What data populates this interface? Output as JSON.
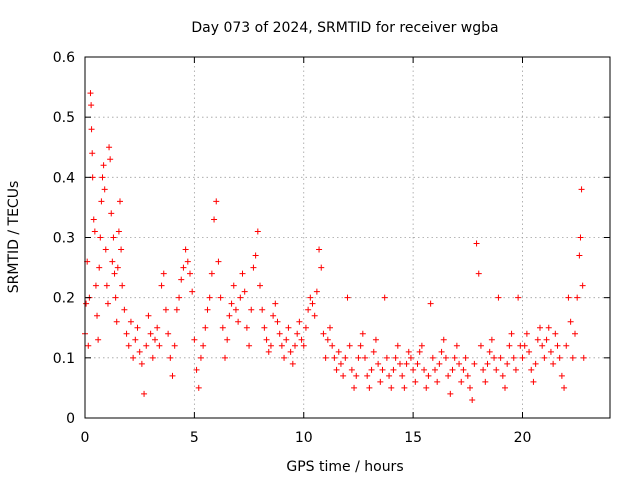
{
  "chart_data": {
    "type": "scatter",
    "title": "Day 073 of 2024, SRMTID for receiver wgba",
    "xlabel": "GPS time / hours",
    "ylabel": "SRMTID / TECUs",
    "xlim": [
      0,
      24
    ],
    "ylim": [
      0,
      0.6
    ],
    "xticks": [
      0,
      5,
      10,
      15,
      20
    ],
    "xtick_labels": [
      "0",
      "5",
      "10",
      "15",
      "20"
    ],
    "yticks": [
      0,
      0.1,
      0.2,
      0.3,
      0.4,
      0.5,
      0.6
    ],
    "ytick_labels": [
      "0",
      "0.1",
      "0.2",
      "0.3",
      "0.4",
      "0.5",
      "0.6"
    ],
    "grid": true,
    "marker": "+",
    "color": "#ff0000",
    "series": [
      {
        "name": "SRMTID",
        "points": [
          [
            0.0,
            0.14
          ],
          [
            0.05,
            0.19
          ],
          [
            0.1,
            0.26
          ],
          [
            0.15,
            0.12
          ],
          [
            0.2,
            0.2
          ],
          [
            0.25,
            0.54
          ],
          [
            0.28,
            0.52
          ],
          [
            0.3,
            0.48
          ],
          [
            0.33,
            0.44
          ],
          [
            0.35,
            0.4
          ],
          [
            0.4,
            0.33
          ],
          [
            0.45,
            0.31
          ],
          [
            0.5,
            0.22
          ],
          [
            0.55,
            0.17
          ],
          [
            0.6,
            0.13
          ],
          [
            0.65,
            0.25
          ],
          [
            0.7,
            0.3
          ],
          [
            0.75,
            0.36
          ],
          [
            0.8,
            0.4
          ],
          [
            0.85,
            0.42
          ],
          [
            0.9,
            0.38
          ],
          [
            0.95,
            0.28
          ],
          [
            1.0,
            0.22
          ],
          [
            1.05,
            0.19
          ],
          [
            1.1,
            0.45
          ],
          [
            1.15,
            0.43
          ],
          [
            1.2,
            0.34
          ],
          [
            1.25,
            0.26
          ],
          [
            1.3,
            0.3
          ],
          [
            1.35,
            0.24
          ],
          [
            1.4,
            0.2
          ],
          [
            1.45,
            0.16
          ],
          [
            1.5,
            0.25
          ],
          [
            1.55,
            0.31
          ],
          [
            1.6,
            0.36
          ],
          [
            1.65,
            0.28
          ],
          [
            1.7,
            0.22
          ],
          [
            1.8,
            0.18
          ],
          [
            1.9,
            0.14
          ],
          [
            2.0,
            0.12
          ],
          [
            2.1,
            0.16
          ],
          [
            2.2,
            0.1
          ],
          [
            2.3,
            0.13
          ],
          [
            2.4,
            0.15
          ],
          [
            2.5,
            0.11
          ],
          [
            2.6,
            0.09
          ],
          [
            2.7,
            0.04
          ],
          [
            2.8,
            0.12
          ],
          [
            2.9,
            0.17
          ],
          [
            3.0,
            0.14
          ],
          [
            3.1,
            0.1
          ],
          [
            3.2,
            0.13
          ],
          [
            3.3,
            0.15
          ],
          [
            3.4,
            0.12
          ],
          [
            3.5,
            0.22
          ],
          [
            3.6,
            0.24
          ],
          [
            3.7,
            0.18
          ],
          [
            3.8,
            0.14
          ],
          [
            3.9,
            0.1
          ],
          [
            4.0,
            0.07
          ],
          [
            4.1,
            0.12
          ],
          [
            4.2,
            0.18
          ],
          [
            4.3,
            0.2
          ],
          [
            4.4,
            0.23
          ],
          [
            4.5,
            0.25
          ],
          [
            4.6,
            0.28
          ],
          [
            4.7,
            0.26
          ],
          [
            4.8,
            0.24
          ],
          [
            4.9,
            0.21
          ],
          [
            5.0,
            0.13
          ],
          [
            5.1,
            0.08
          ],
          [
            5.2,
            0.05
          ],
          [
            5.3,
            0.1
          ],
          [
            5.4,
            0.12
          ],
          [
            5.5,
            0.15
          ],
          [
            5.6,
            0.18
          ],
          [
            5.7,
            0.2
          ],
          [
            5.8,
            0.24
          ],
          [
            5.9,
            0.33
          ],
          [
            6.0,
            0.36
          ],
          [
            6.1,
            0.26
          ],
          [
            6.2,
            0.2
          ],
          [
            6.3,
            0.15
          ],
          [
            6.4,
            0.1
          ],
          [
            6.5,
            0.13
          ],
          [
            6.6,
            0.17
          ],
          [
            6.7,
            0.19
          ],
          [
            6.8,
            0.22
          ],
          [
            6.9,
            0.18
          ],
          [
            7.0,
            0.16
          ],
          [
            7.1,
            0.2
          ],
          [
            7.2,
            0.24
          ],
          [
            7.3,
            0.21
          ],
          [
            7.4,
            0.15
          ],
          [
            7.5,
            0.12
          ],
          [
            7.6,
            0.18
          ],
          [
            7.7,
            0.25
          ],
          [
            7.8,
            0.27
          ],
          [
            7.9,
            0.31
          ],
          [
            8.0,
            0.22
          ],
          [
            8.1,
            0.18
          ],
          [
            8.2,
            0.15
          ],
          [
            8.3,
            0.13
          ],
          [
            8.4,
            0.11
          ],
          [
            8.5,
            0.12
          ],
          [
            8.6,
            0.17
          ],
          [
            8.7,
            0.19
          ],
          [
            8.8,
            0.16
          ],
          [
            8.9,
            0.14
          ],
          [
            9.0,
            0.12
          ],
          [
            9.1,
            0.1
          ],
          [
            9.2,
            0.13
          ],
          [
            9.3,
            0.15
          ],
          [
            9.4,
            0.11
          ],
          [
            9.5,
            0.09
          ],
          [
            9.6,
            0.12
          ],
          [
            9.7,
            0.14
          ],
          [
            9.8,
            0.16
          ],
          [
            9.9,
            0.13
          ],
          [
            10.0,
            0.12
          ],
          [
            10.1,
            0.15
          ],
          [
            10.2,
            0.18
          ],
          [
            10.3,
            0.2
          ],
          [
            10.4,
            0.19
          ],
          [
            10.5,
            0.17
          ],
          [
            10.6,
            0.21
          ],
          [
            10.7,
            0.28
          ],
          [
            10.8,
            0.25
          ],
          [
            10.9,
            0.14
          ],
          [
            11.0,
            0.1
          ],
          [
            11.1,
            0.13
          ],
          [
            11.2,
            0.15
          ],
          [
            11.3,
            0.12
          ],
          [
            11.4,
            0.1
          ],
          [
            11.5,
            0.08
          ],
          [
            11.6,
            0.11
          ],
          [
            11.7,
            0.09
          ],
          [
            11.8,
            0.07
          ],
          [
            11.9,
            0.1
          ],
          [
            12.0,
            0.2
          ],
          [
            12.1,
            0.12
          ],
          [
            12.2,
            0.08
          ],
          [
            12.3,
            0.05
          ],
          [
            12.4,
            0.07
          ],
          [
            12.5,
            0.1
          ],
          [
            12.6,
            0.12
          ],
          [
            12.7,
            0.14
          ],
          [
            12.8,
            0.1
          ],
          [
            12.9,
            0.07
          ],
          [
            13.0,
            0.05
          ],
          [
            13.1,
            0.08
          ],
          [
            13.2,
            0.11
          ],
          [
            13.3,
            0.13
          ],
          [
            13.4,
            0.09
          ],
          [
            13.5,
            0.06
          ],
          [
            13.6,
            0.08
          ],
          [
            13.7,
            0.2
          ],
          [
            13.8,
            0.1
          ],
          [
            13.9,
            0.07
          ],
          [
            14.0,
            0.05
          ],
          [
            14.1,
            0.08
          ],
          [
            14.2,
            0.1
          ],
          [
            14.3,
            0.12
          ],
          [
            14.4,
            0.09
          ],
          [
            14.5,
            0.07
          ],
          [
            14.6,
            0.05
          ],
          [
            14.7,
            0.09
          ],
          [
            14.8,
            0.11
          ],
          [
            14.9,
            0.1
          ],
          [
            15.0,
            0.08
          ],
          [
            15.1,
            0.06
          ],
          [
            15.2,
            0.09
          ],
          [
            15.3,
            0.11
          ],
          [
            15.4,
            0.12
          ],
          [
            15.5,
            0.08
          ],
          [
            15.6,
            0.05
          ],
          [
            15.7,
            0.07
          ],
          [
            15.8,
            0.19
          ],
          [
            15.9,
            0.1
          ],
          [
            16.0,
            0.08
          ],
          [
            16.1,
            0.06
          ],
          [
            16.2,
            0.09
          ],
          [
            16.3,
            0.11
          ],
          [
            16.4,
            0.13
          ],
          [
            16.5,
            0.1
          ],
          [
            16.6,
            0.07
          ],
          [
            16.7,
            0.04
          ],
          [
            16.8,
            0.08
          ],
          [
            16.9,
            0.1
          ],
          [
            17.0,
            0.12
          ],
          [
            17.1,
            0.09
          ],
          [
            17.2,
            0.06
          ],
          [
            17.3,
            0.08
          ],
          [
            17.4,
            0.1
          ],
          [
            17.5,
            0.07
          ],
          [
            17.6,
            0.05
          ],
          [
            17.7,
            0.03
          ],
          [
            17.8,
            0.09
          ],
          [
            17.9,
            0.29
          ],
          [
            18.0,
            0.24
          ],
          [
            18.1,
            0.12
          ],
          [
            18.2,
            0.08
          ],
          [
            18.3,
            0.06
          ],
          [
            18.4,
            0.09
          ],
          [
            18.5,
            0.11
          ],
          [
            18.6,
            0.13
          ],
          [
            18.7,
            0.1
          ],
          [
            18.8,
            0.08
          ],
          [
            18.9,
            0.2
          ],
          [
            19.0,
            0.1
          ],
          [
            19.1,
            0.07
          ],
          [
            19.2,
            0.05
          ],
          [
            19.3,
            0.09
          ],
          [
            19.4,
            0.12
          ],
          [
            19.5,
            0.14
          ],
          [
            19.6,
            0.1
          ],
          [
            19.7,
            0.08
          ],
          [
            19.8,
            0.2
          ],
          [
            19.9,
            0.12
          ],
          [
            20.0,
            0.1
          ],
          [
            20.1,
            0.12
          ],
          [
            20.2,
            0.14
          ],
          [
            20.3,
            0.11
          ],
          [
            20.4,
            0.08
          ],
          [
            20.5,
            0.06
          ],
          [
            20.6,
            0.09
          ],
          [
            20.7,
            0.13
          ],
          [
            20.8,
            0.15
          ],
          [
            20.9,
            0.12
          ],
          [
            21.0,
            0.1
          ],
          [
            21.1,
            0.13
          ],
          [
            21.2,
            0.15
          ],
          [
            21.3,
            0.11
          ],
          [
            21.4,
            0.09
          ],
          [
            21.5,
            0.14
          ],
          [
            21.6,
            0.12
          ],
          [
            21.7,
            0.1
          ],
          [
            21.8,
            0.07
          ],
          [
            21.9,
            0.05
          ],
          [
            22.0,
            0.12
          ],
          [
            22.1,
            0.2
          ],
          [
            22.2,
            0.16
          ],
          [
            22.3,
            0.1
          ],
          [
            22.4,
            0.14
          ],
          [
            22.5,
            0.2
          ],
          [
            22.6,
            0.27
          ],
          [
            22.65,
            0.3
          ],
          [
            22.7,
            0.38
          ],
          [
            22.75,
            0.22
          ],
          [
            22.8,
            0.1
          ]
        ]
      }
    ]
  }
}
